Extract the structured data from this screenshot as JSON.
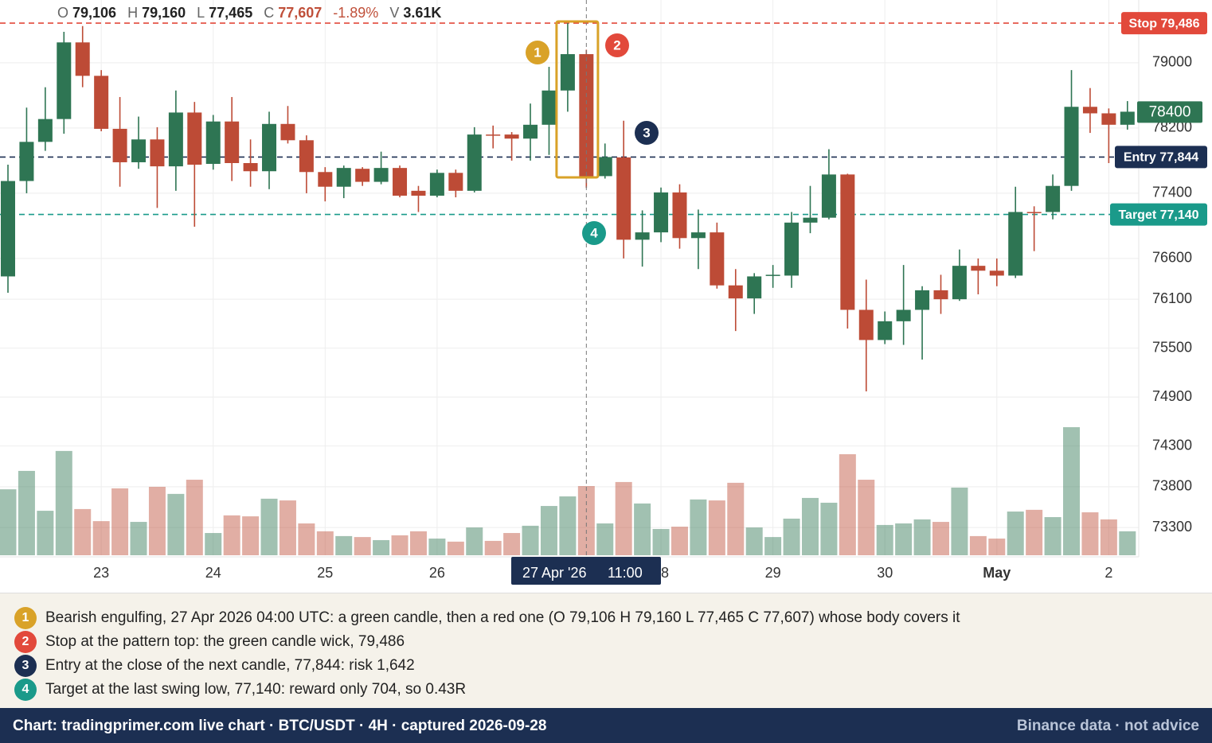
{
  "chart_data": {
    "type": "candlestick",
    "header": [
      {
        "key": "O",
        "value": "79,106"
      },
      {
        "key": "H",
        "value": "79,160"
      },
      {
        "key": "L",
        "value": "77,465"
      },
      {
        "key": "C",
        "value": "77,607",
        "color": "#c0503a"
      },
      {
        "value": "-1.89%",
        "color": "#c0503a"
      },
      {
        "key": "V",
        "value": "3.61K"
      }
    ],
    "categories": [
      null,
      null,
      null,
      null,
      null,
      "23",
      null,
      null,
      null,
      null,
      null,
      "24",
      null,
      null,
      null,
      null,
      null,
      "25",
      null,
      null,
      null,
      null,
      null,
      "26",
      null,
      null,
      null,
      null,
      null,
      null,
      null,
      null,
      null,
      null,
      null,
      "28",
      null,
      null,
      null,
      null,
      null,
      "29",
      null,
      null,
      null,
      null,
      null,
      "30",
      null,
      null,
      null,
      null,
      null,
      "May",
      null,
      null,
      null,
      null,
      null,
      "2",
      null
    ],
    "open": [
      76380,
      77550,
      78030,
      78310,
      79250,
      78840,
      78190,
      77780,
      78060,
      77730,
      78390,
      77760,
      78280,
      77770,
      77670,
      78250,
      78050,
      77660,
      77480,
      77700,
      77540,
      77710,
      77430,
      77370,
      77650,
      77430,
      78120,
      78120,
      78070,
      78240,
      78660,
      79106,
      77610,
      77840,
      76830,
      76920,
      77410,
      76850,
      76920,
      76270,
      76110,
      76390,
      76390,
      77040,
      77100,
      77630,
      75970,
      75600,
      75830,
      75970,
      76210,
      76100,
      76510,
      76450,
      76390,
      77170,
      77170,
      77490,
      78460,
      78380,
      78240
    ],
    "high": [
      77750,
      78450,
      78700,
      79380,
      79450,
      78910,
      78580,
      78340,
      78210,
      78660,
      78520,
      78360,
      78580,
      78060,
      78400,
      78470,
      78110,
      77720,
      77740,
      77720,
      77910,
      77740,
      77490,
      77690,
      77690,
      78210,
      78230,
      78150,
      78500,
      78950,
      79486,
      79160,
      78010,
      78290,
      77190,
      77470,
      77510,
      77200,
      77040,
      76470,
      76420,
      76520,
      77170,
      77490,
      77940,
      77640,
      76340,
      75950,
      76520,
      76260,
      76400,
      76710,
      76600,
      76600,
      77480,
      77240,
      77630,
      78910,
      78690,
      78440,
      78530
    ],
    "low": [
      76180,
      77400,
      77920,
      78130,
      78700,
      78160,
      77480,
      77700,
      77220,
      77430,
      76990,
      77690,
      77550,
      77480,
      77450,
      78010,
      77400,
      77300,
      77340,
      77490,
      77510,
      77350,
      77170,
      77350,
      77350,
      77410,
      77950,
      77800,
      77800,
      77870,
      78400,
      77465,
      77580,
      76600,
      76500,
      76800,
      76720,
      76470,
      76230,
      75710,
      75920,
      76240,
      76240,
      76910,
      77080,
      75740,
      74970,
      75550,
      75540,
      75360,
      75920,
      76080,
      76160,
      76260,
      76360,
      76690,
      77080,
      77430,
      78140,
      77770,
      78180
    ],
    "close": [
      77550,
      78030,
      78310,
      79250,
      78840,
      78190,
      77780,
      78060,
      77730,
      78390,
      77750,
      78280,
      77770,
      77670,
      78250,
      78050,
      77660,
      77480,
      77710,
      77540,
      77710,
      77370,
      77370,
      77650,
      77430,
      78120,
      78110,
      78070,
      78240,
      78660,
      79106,
      77607,
      77844,
      76830,
      76920,
      77410,
      76850,
      76920,
      76270,
      76110,
      76380,
      76400,
      77040,
      77100,
      77630,
      75970,
      75600,
      75830,
      75970,
      76210,
      76100,
      76510,
      76450,
      76390,
      77170,
      77160,
      77490,
      78460,
      78380,
      78240,
      78400
    ],
    "volume": [
      3.44,
      4.4,
      2.32,
      5.44,
      2.41,
      1.78,
      3.49,
      1.74,
      3.57,
      3.2,
      3.94,
      1.16,
      2.08,
      2.03,
      2.95,
      2.86,
      1.66,
      1.25,
      1.0,
      0.95,
      0.79,
      1.04,
      1.25,
      0.87,
      0.71,
      1.45,
      0.75,
      1.16,
      1.54,
      2.57,
      3.07,
      3.61,
      1.66,
      3.82,
      2.7,
      1.37,
      1.49,
      2.91,
      2.86,
      3.78,
      1.45,
      0.95,
      1.91,
      2.99,
      2.74,
      5.27,
      3.94,
      1.58,
      1.66,
      1.87,
      1.74,
      3.53,
      1.0,
      0.87,
      2.28,
      2.37,
      1.99,
      6.68,
      2.24,
      1.87,
      1.25
    ],
    "up_color": "#2e7553",
    "down_color": "#bd4b36",
    "ylim": [
      72960,
      79770
    ],
    "yticks": [
      79000,
      78200,
      77400,
      76600,
      76100,
      75500,
      74900,
      74300,
      73800,
      73300
    ],
    "grid": true,
    "levels": [
      {
        "label": "Stop 79,486",
        "value": 79486,
        "color": "#e2493b"
      },
      {
        "label": "Entry 77,844",
        "value": 77844,
        "color": "#1c2f52"
      },
      {
        "label": "Target 77,140",
        "value": 77140,
        "color": "#1a9a8a"
      }
    ],
    "last_price": {
      "value": 78400,
      "color": "#2e7553"
    },
    "crosshair": {
      "date": "27 Apr '26",
      "time": "11:00"
    },
    "notes": [
      {
        "number": "1",
        "color": "#d9a228",
        "text": "Bearish engulfing, 27 Apr 2026 04:00 UTC: a green candle, then a red one (O 79,106 H 79,160 L 77,465 C 77,607) whose body covers it"
      },
      {
        "number": "2",
        "color": "#e2493b",
        "text": "Stop at the pattern top: the green candle wick, 79,486"
      },
      {
        "number": "3",
        "color": "#1c2f52",
        "text": "Entry at the close of the next candle, 77,844: risk 1,642"
      },
      {
        "number": "4",
        "color": "#1a9a8a",
        "text": "Target at the last swing low, 77,140: reward only 704, so 0.43R"
      }
    ]
  },
  "footer": {
    "left": "Chart: tradingprimer.com live chart · BTC/USDT · 4H · captured 2026-09-28",
    "right": "Binance data · not advice"
  }
}
